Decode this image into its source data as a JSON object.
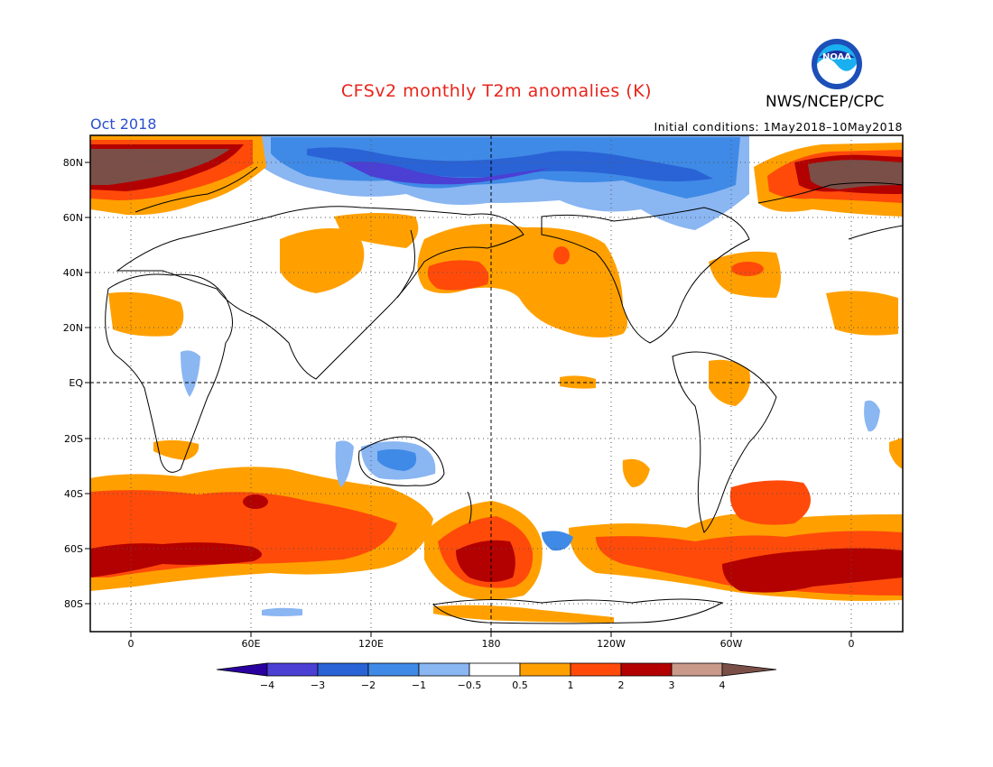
{
  "title": "CFSv2 monthly T2m anomalies (K)",
  "org": "NWS/NCEP/CPC",
  "logo_text": "NOAA",
  "valid_month": "Oct 2018",
  "initial_conditions": "Initial conditions: 1May2018–10May2018",
  "axes": {
    "lat_labels": [
      "80N",
      "60N",
      "40N",
      "20N",
      "EQ",
      "20S",
      "40S",
      "60S",
      "80S"
    ],
    "lon_labels": [
      "0",
      "60E",
      "120E",
      "180",
      "120W",
      "60W",
      "0"
    ]
  },
  "colorbar": {
    "labels": [
      "−4",
      "−3",
      "−2",
      "−1",
      "−0.5",
      "0.5",
      "1",
      "2",
      "3",
      "4"
    ],
    "colors": [
      "#2a00a0",
      "#4b3fd4",
      "#2a63d6",
      "#3f8ae6",
      "#8ab6f2",
      "#ffffff",
      "#ffa000",
      "#ff4a0a",
      "#b30000",
      "#c9998a",
      "#7a4f47"
    ]
  },
  "colors": {
    "title": "#e8241a",
    "month": "#2a4fd0",
    "neg1": "#8ab6f2",
    "neg2": "#3f8ae6",
    "neg3": "#2a63d6",
    "neg4": "#4b3fd4",
    "pos1": "#ffa000",
    "pos2": "#ff4a0a",
    "pos3": "#b30000",
    "pos4": "#c9998a",
    "pos5": "#7a4f47"
  }
}
